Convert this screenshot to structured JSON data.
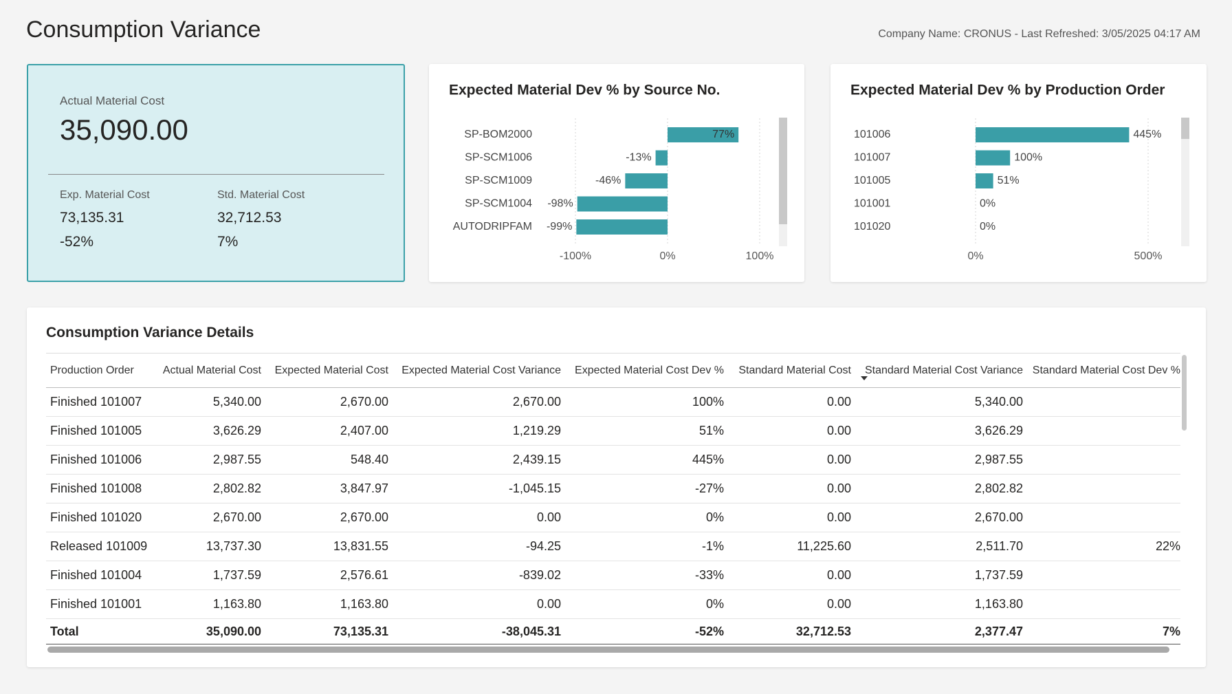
{
  "header": {
    "title": "Consumption Variance",
    "info": "Company Name: CRONUS - Last Refreshed: 3/05/2025 04:17 AM"
  },
  "card": {
    "title": "Actual Material Cost",
    "value": "35,090.00",
    "items": [
      {
        "label": "Exp. Material Cost",
        "value": "73,135.31",
        "percent": "-52%"
      },
      {
        "label": "Std. Material Cost",
        "value": "32,712.53",
        "percent": "7%"
      }
    ]
  },
  "chart_data": [
    {
      "type": "bar",
      "orientation": "horizontal",
      "title": "Expected Material Dev % by Source No.",
      "categories": [
        "SP-BOM2000",
        "SP-SCM1006",
        "SP-SCM1009",
        "SP-SCM1004",
        "AUTODRIPFAM"
      ],
      "values": [
        77,
        -13,
        -46,
        -98,
        -99
      ],
      "value_labels": [
        "77%",
        "-13%",
        "-46%",
        "-98%",
        "-99%"
      ],
      "color": "#3a9ea7",
      "xlim": [
        -100,
        100
      ],
      "xticks": [
        {
          "value": -100,
          "label": "-100%"
        },
        {
          "value": 0,
          "label": "0%"
        },
        {
          "value": 100,
          "label": "100%"
        }
      ],
      "grid": true
    },
    {
      "type": "bar",
      "orientation": "horizontal",
      "title": "Expected Material Dev % by Production Order",
      "categories": [
        "101006",
        "101007",
        "101005",
        "101001",
        "101020"
      ],
      "values": [
        445,
        100,
        51,
        0,
        0
      ],
      "value_labels": [
        "445%",
        "100%",
        "51%",
        "0%",
        "0%"
      ],
      "color": "#3a9ea7",
      "xlim": [
        0,
        500
      ],
      "xticks": [
        {
          "value": 0,
          "label": "0%"
        },
        {
          "value": 500,
          "label": "500%"
        }
      ],
      "grid": true
    }
  ],
  "table": {
    "title": "Consumption Variance Details",
    "header": [
      "Production Order",
      "Actual Material Cost",
      "Expected Material Cost",
      "Expected Material Cost Variance",
      "Expected Material Cost Dev %",
      "Standard Material Cost",
      "Standard Material Cost Variance",
      "Standard Material Cost Dev %"
    ],
    "rows": [
      [
        "Finished 101007",
        "5,340.00",
        "2,670.00",
        "2,670.00",
        "100%",
        "0.00",
        "5,340.00",
        null
      ],
      [
        "Finished 101005",
        "3,626.29",
        "2,407.00",
        "1,219.29",
        "51%",
        "0.00",
        "3,626.29",
        null
      ],
      [
        "Finished 101006",
        "2,987.55",
        "548.40",
        "2,439.15",
        "445%",
        "0.00",
        "2,987.55",
        null
      ],
      [
        "Finished 101008",
        "2,802.82",
        "3,847.97",
        "-1,045.15",
        "-27%",
        "0.00",
        "2,802.82",
        null
      ],
      [
        "Finished 101020",
        "2,670.00",
        "2,670.00",
        "0.00",
        "0%",
        "0.00",
        "2,670.00",
        null
      ],
      [
        "Released 101009",
        "13,737.30",
        "13,831.55",
        "-94.25",
        "-1%",
        "11,225.60",
        "2,511.70",
        "22%"
      ],
      [
        "Finished 101004",
        "1,737.59",
        "2,576.61",
        "-839.02",
        "-33%",
        "0.00",
        "1,737.59",
        null
      ],
      [
        "Finished 101001",
        "1,163.80",
        "1,163.80",
        "0.00",
        "0%",
        "0.00",
        "1,163.80",
        null
      ]
    ],
    "total": [
      "Total",
      "35,090.00",
      "73,135.31",
      "-38,045.31",
      "-52%",
      "32,712.53",
      "2,377.47",
      "7%"
    ]
  }
}
